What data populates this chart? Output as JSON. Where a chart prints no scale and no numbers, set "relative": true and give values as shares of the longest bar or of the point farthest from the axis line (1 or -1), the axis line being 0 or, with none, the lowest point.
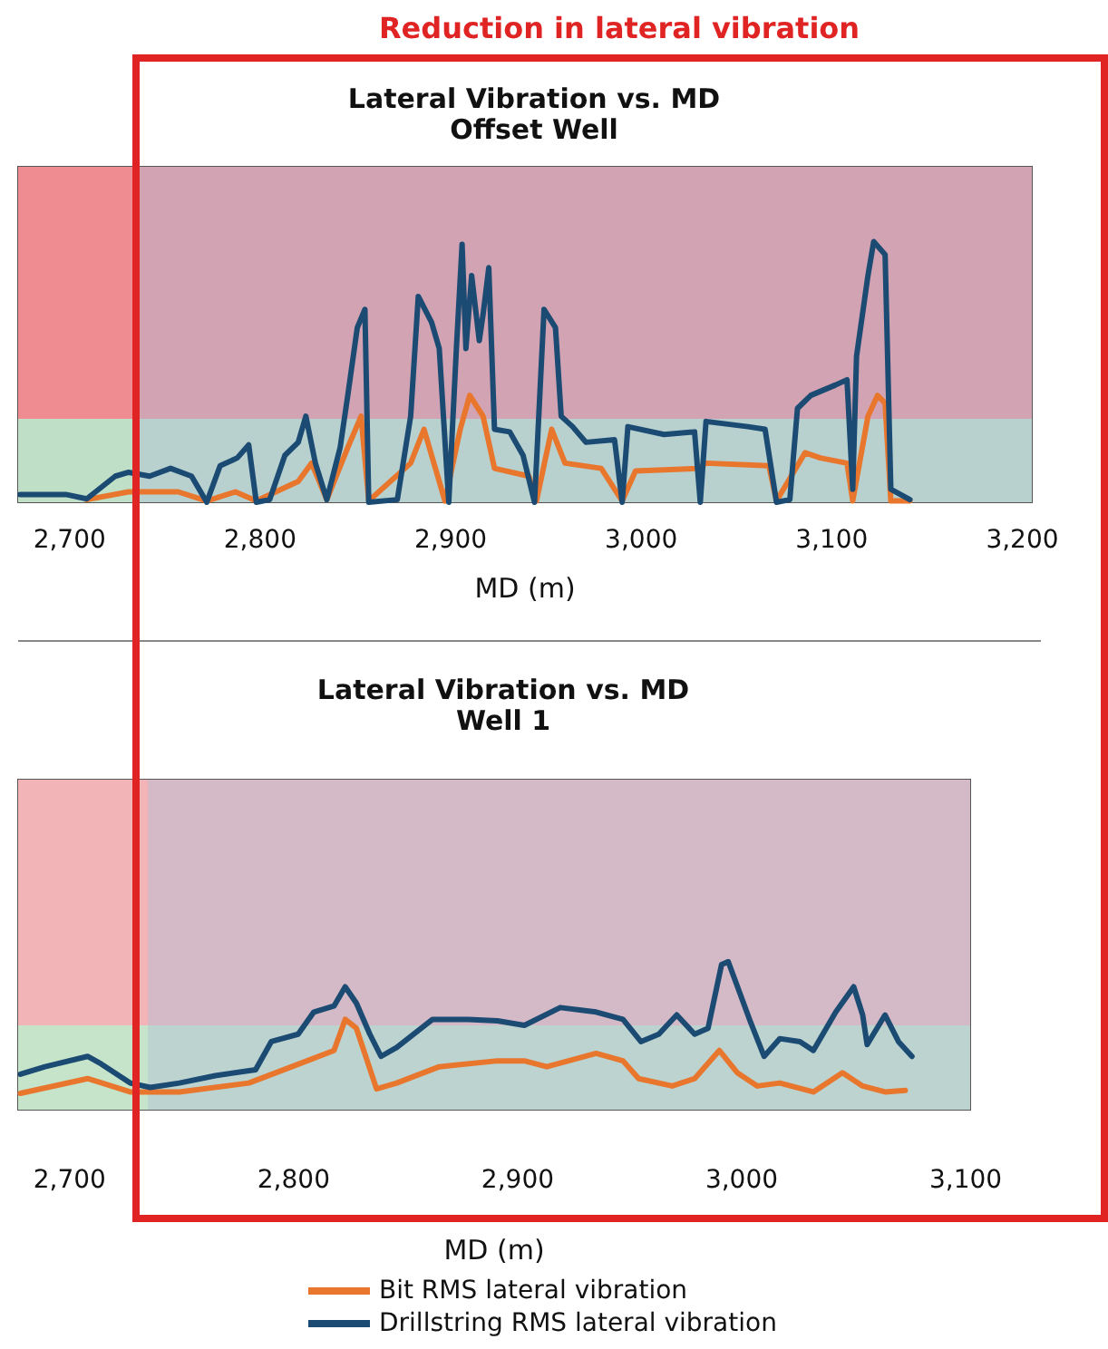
{
  "chart_data": [
    {
      "type": "line",
      "title": "Lateral Vibration vs. MD",
      "subtitle": "Offset Well",
      "xlabel": "MD (m)",
      "annotations": [
        "Reduction in lateral vibration"
      ],
      "relative": true,
      "xlim": [
        2673,
        3205
      ],
      "xticks": [
        {
          "value": 2700,
          "label": "2,700"
        },
        {
          "value": 2800,
          "label": "2,800"
        },
        {
          "value": 2900,
          "label": "2,900"
        },
        {
          "value": 3000,
          "label": "3,000"
        },
        {
          "value": 3100,
          "label": "3,100"
        },
        {
          "value": 3200,
          "label": "3,200"
        }
      ],
      "bands": [
        {
          "axis": "y",
          "from": 0,
          "to": 0.32,
          "color": "#bfe0c6"
        },
        {
          "axis": "y",
          "from": 0.32,
          "to": 1.287,
          "color": "#ee8c92"
        },
        {
          "axis": "x",
          "from": 2735,
          "to": 3205,
          "color": "#b0bfd9"
        }
      ],
      "series": [
        {
          "color": "#e8762d",
          "x": [
            2709,
            2731,
            2757,
            2772,
            2787,
            2798,
            2820,
            2827,
            2835,
            2846,
            2853,
            2857,
            2879,
            2886,
            2897,
            2905,
            2910,
            2917,
            2923,
            2941,
            2945,
            2953,
            2960,
            2979,
            2990,
            2997,
            3030,
            3034,
            3067,
            3071,
            3086,
            3094,
            3108,
            3111,
            3119,
            3124,
            3128,
            3131,
            3141
          ],
          "values": [
            0.01,
            0.04,
            0.04,
            0.005,
            0.04,
            0.005,
            0.08,
            0.15,
            0.01,
            0.21,
            0.33,
            0.005,
            0.15,
            0.28,
            0.005,
            0.28,
            0.41,
            0.33,
            0.13,
            0.1,
            0.005,
            0.28,
            0.15,
            0.13,
            0.005,
            0.12,
            0.13,
            0.15,
            0.14,
            0.005,
            0.19,
            0.17,
            0.15,
            0.005,
            0.33,
            0.41,
            0.38,
            0.005,
            0.005
          ]
        },
        {
          "color": "#1b4a72",
          "x": [
            2674,
            2698,
            2709,
            2724,
            2731,
            2742,
            2753,
            2764,
            2772,
            2779,
            2788,
            2794,
            2798,
            2805,
            2813,
            2820,
            2824,
            2829,
            2835,
            2842,
            2846,
            2851,
            2855,
            2857,
            2872,
            2879,
            2883,
            2890,
            2894,
            2899,
            2903,
            2906,
            2908,
            2911,
            2915,
            2917,
            2920,
            2923,
            2931,
            2938,
            2944,
            2949,
            2955,
            2958,
            2964,
            2971,
            2986,
            2990,
            2993,
            3012,
            3028,
            3031,
            3034,
            3056,
            3065,
            3071,
            3078,
            3082,
            3089,
            3102,
            3108,
            3111,
            3113,
            3119,
            3122,
            3128,
            3131,
            3141
          ],
          "values": [
            0.03,
            0.03,
            0.013,
            0.1,
            0.115,
            0.1,
            0.13,
            0.1,
            0,
            0.14,
            0.17,
            0.22,
            0,
            0.01,
            0.18,
            0.23,
            0.33,
            0.15,
            0.01,
            0.21,
            0.41,
            0.67,
            0.74,
            0,
            0.01,
            0.33,
            0.79,
            0.69,
            0.59,
            0,
            0.59,
            0.99,
            0.59,
            0.87,
            0.62,
            0.72,
            0.9,
            0.28,
            0.27,
            0.18,
            0,
            0.74,
            0.67,
            0.33,
            0.29,
            0.23,
            0.24,
            0,
            0.29,
            0.26,
            0.27,
            0,
            0.31,
            0.29,
            0.28,
            0,
            0.01,
            0.36,
            0.41,
            0.45,
            0.47,
            0.05,
            0.56,
            0.87,
            1,
            0.95,
            0.05,
            0.01
          ]
        }
      ]
    },
    {
      "type": "line",
      "title": "Lateral Vibration vs. MD",
      "subtitle": "Well 1",
      "xlabel": "MD (m)",
      "relative": true,
      "legend": "bottom",
      "xlim": [
        2677,
        3102
      ],
      "xticks": [
        {
          "value": 2700,
          "label": "2,700"
        },
        {
          "value": 2800,
          "label": "2,800"
        },
        {
          "value": 2900,
          "label": "2,900"
        },
        {
          "value": 3000,
          "label": "3,000"
        },
        {
          "value": 3100,
          "label": "3,100"
        }
      ],
      "bands": [
        {
          "axis": "y",
          "from": 0,
          "to": 0.57,
          "color": "#c6e4c9"
        },
        {
          "axis": "y",
          "from": 0.57,
          "to": 2.23,
          "color": "#f2b4b7"
        },
        {
          "axis": "x",
          "from": 2735,
          "to": 3102,
          "color": "#b0bfd9"
        }
      ],
      "series": [
        {
          "name": "Bit RMS lateral vibration",
          "color": "#e8762d",
          "x": [
            2678,
            2708,
            2727,
            2749,
            2780,
            2806,
            2818,
            2823,
            2828,
            2837,
            2846,
            2865,
            2891,
            2903,
            2913,
            2935,
            2947,
            2954,
            2969,
            2979,
            2990,
            2998,
            3007,
            3017,
            3032,
            3045,
            3054,
            3064,
            3073
          ],
          "values": [
            0.11,
            0.21,
            0.12,
            0.12,
            0.18,
            0.33,
            0.4,
            0.61,
            0.55,
            0.14,
            0.18,
            0.29,
            0.33,
            0.33,
            0.29,
            0.38,
            0.33,
            0.21,
            0.16,
            0.21,
            0.4,
            0.25,
            0.16,
            0.18,
            0.12,
            0.25,
            0.16,
            0.12,
            0.13
          ]
        },
        {
          "name": "Drillstring RMS lateral vibration",
          "color": "#1b4a72",
          "x": [
            2678,
            2689,
            2708,
            2714,
            2727,
            2736,
            2749,
            2765,
            2783,
            2790,
            2802,
            2809,
            2818,
            2823,
            2828,
            2834,
            2839,
            2846,
            2862,
            2878,
            2891,
            2903,
            2919,
            2935,
            2947,
            2955,
            2963,
            2971,
            2979,
            2985,
            2991,
            2994,
            3004,
            3010,
            3017,
            3026,
            3032,
            3042,
            3050,
            3054,
            3056,
            3064,
            3070,
            3076
          ],
          "values": [
            0.24,
            0.29,
            0.36,
            0.31,
            0.18,
            0.15,
            0.18,
            0.23,
            0.27,
            0.46,
            0.51,
            0.66,
            0.7,
            0.83,
            0.72,
            0.51,
            0.36,
            0.42,
            0.61,
            0.61,
            0.6,
            0.57,
            0.69,
            0.66,
            0.61,
            0.46,
            0.51,
            0.64,
            0.51,
            0.55,
            0.98,
            1,
            0.59,
            0.36,
            0.48,
            0.46,
            0.4,
            0.66,
            0.83,
            0.64,
            0.44,
            0.64,
            0.46,
            0.36
          ]
        }
      ]
    }
  ]
}
